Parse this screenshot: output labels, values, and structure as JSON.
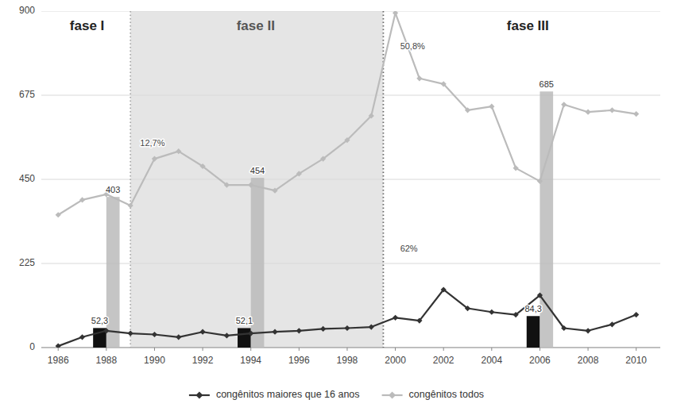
{
  "chart_data": {
    "type": "line",
    "x": [
      1986,
      1987,
      1988,
      1989,
      1990,
      1991,
      1992,
      1993,
      1994,
      1995,
      1996,
      1997,
      1998,
      1999,
      2000,
      2001,
      2002,
      2003,
      2004,
      2005,
      2006,
      2007,
      2008,
      2009,
      2010
    ],
    "series": [
      {
        "name": "congênitos maiores que 16 anos",
        "type": "line",
        "color": "#333333",
        "marker": "diamond",
        "line_style": "solid",
        "values": [
          4,
          28,
          45,
          38,
          35,
          28,
          42,
          32,
          38,
          42,
          45,
          50,
          52,
          55,
          80,
          72,
          155,
          105,
          95,
          88,
          140,
          52,
          45,
          62,
          88
        ]
      },
      {
        "name": "congênitos todos",
        "type": "line",
        "color": "#bbbbbb",
        "marker": "diamond",
        "line_style": "solid",
        "values": [
          355,
          395,
          410,
          380,
          505,
          525,
          485,
          435,
          435,
          420,
          465,
          505,
          555,
          620,
          895,
          720,
          705,
          635,
          645,
          480,
          445,
          650,
          630,
          635,
          625
        ]
      },
      {
        "type": "bar",
        "color": "#111111",
        "data_labels": true,
        "x": [
          1988,
          1994,
          2006
        ],
        "values": [
          52.3,
          52.1,
          84.3
        ],
        "value_labels": [
          "52,3",
          "52,1",
          "84,3"
        ]
      },
      {
        "type": "bar",
        "color": "#bbbbbb",
        "data_labels": true,
        "x": [
          1988,
          1994,
          2006
        ],
        "values": [
          403,
          454,
          685
        ]
      }
    ],
    "shaded_regions": [
      {
        "x0": 1989.0,
        "x1": 1999.5,
        "color": "#e5e5e5"
      }
    ],
    "vlines": [
      {
        "x": 1989.0,
        "color": "#aaaaaa",
        "line_style": "dotted"
      },
      {
        "x": 1999.5,
        "color": "#666666",
        "line_style": "dotted"
      }
    ],
    "region_labels": [
      {
        "text": "fase I",
        "x": 1987.2,
        "y": 875
      },
      {
        "text": "fase II",
        "x": 1994.2,
        "y": 875
      },
      {
        "text": "fase III",
        "x": 2005.5,
        "y": 875
      }
    ],
    "annotations": [
      {
        "text": "50,8%",
        "x": 2000.2,
        "y": 805
      },
      {
        "text": "62%",
        "x": 2000.2,
        "y": 262
      },
      {
        "text": "12,7%",
        "x": 1989.4,
        "y": 545
      }
    ],
    "xlim": [
      1985.3,
      2011.0
    ],
    "xticks": [
      1986,
      1988,
      1990,
      1992,
      1994,
      1996,
      1998,
      2000,
      2002,
      2004,
      2006,
      2008,
      2010
    ],
    "ylim": [
      0,
      900
    ],
    "yticks": [
      0,
      225,
      450,
      675,
      900
    ],
    "grid": "y",
    "legend": "bottom"
  }
}
